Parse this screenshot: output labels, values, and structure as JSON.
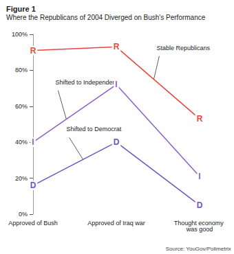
{
  "chart_data": {
    "type": "line",
    "title": "Figure 1",
    "subtitle": "Where the Republicans of 2004 Diverged on Bush's Performance",
    "source": "Source: YouGov/Polimetrix",
    "categories": [
      "Approved of Bush",
      "Approved of Iraq war",
      "Thought economy was good"
    ],
    "series": [
      {
        "name": "Stable Republicans",
        "color": "#e8453c",
        "marker": "R",
        "values": [
          91,
          93,
          53
        ]
      },
      {
        "name": "Shifted to Independent",
        "color": "#8e5fc8",
        "marker": "I",
        "values": [
          40,
          72,
          21
        ]
      },
      {
        "name": "Shifted to Democrat",
        "color": "#6a55c4",
        "marker": "D",
        "values": [
          16,
          40,
          5
        ]
      }
    ],
    "ylim": [
      0,
      100
    ],
    "yticks": [
      {
        "value": 0,
        "label": "0%"
      },
      {
        "value": 20,
        "label": "20%"
      },
      {
        "value": 40,
        "label": "40%"
      },
      {
        "value": 60,
        "label": "60%"
      },
      {
        "value": 80,
        "label": "80%"
      },
      {
        "value": 100,
        "label": "100%"
      }
    ],
    "grid": false
  }
}
